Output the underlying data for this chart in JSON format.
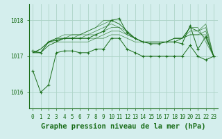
{
  "title": "Graphe pression niveau de la mer (hPa)",
  "bg_color": "#d4eeed",
  "grid_color": "#aed4c8",
  "line_color": "#1a6e1a",
  "ylim": [
    1015.55,
    1018.45
  ],
  "yticks": [
    1016,
    1017,
    1018
  ],
  "xlim": [
    -0.5,
    23.5
  ],
  "xticks": [
    0,
    1,
    2,
    3,
    4,
    5,
    6,
    7,
    8,
    9,
    10,
    11,
    12,
    13,
    14,
    15,
    16,
    17,
    18,
    19,
    20,
    21,
    22,
    23
  ],
  "series": [
    [
      1017.1,
      1017.1,
      1017.3,
      1017.4,
      1017.4,
      1017.4,
      1017.4,
      1017.4,
      1017.5,
      1017.5,
      1017.6,
      1017.6,
      1017.5,
      1017.4,
      1017.4,
      1017.4,
      1017.4,
      1017.4,
      1017.4,
      1017.5,
      1017.6,
      1017.6,
      1017.6,
      1017.0
    ],
    [
      1017.1,
      1017.1,
      1017.3,
      1017.4,
      1017.5,
      1017.5,
      1017.5,
      1017.5,
      1017.5,
      1017.6,
      1017.7,
      1017.7,
      1017.6,
      1017.5,
      1017.4,
      1017.4,
      1017.4,
      1017.4,
      1017.4,
      1017.5,
      1017.6,
      1017.6,
      1017.7,
      1017.0
    ],
    [
      1017.1,
      1017.1,
      1017.4,
      1017.4,
      1017.5,
      1017.5,
      1017.5,
      1017.6,
      1017.6,
      1017.7,
      1017.8,
      1017.8,
      1017.6,
      1017.5,
      1017.4,
      1017.4,
      1017.4,
      1017.4,
      1017.5,
      1017.5,
      1017.7,
      1017.7,
      1017.8,
      1017.0
    ],
    [
      1017.1,
      1017.2,
      1017.4,
      1017.5,
      1017.5,
      1017.5,
      1017.6,
      1017.6,
      1017.7,
      1017.8,
      1017.9,
      1017.8,
      1017.7,
      1017.5,
      1017.4,
      1017.4,
      1017.4,
      1017.4,
      1017.5,
      1017.5,
      1017.8,
      1017.7,
      1017.9,
      1017.0
    ],
    [
      1017.1,
      1017.2,
      1017.4,
      1017.5,
      1017.6,
      1017.6,
      1017.6,
      1017.7,
      1017.8,
      1017.9,
      1018.0,
      1017.9,
      1017.7,
      1017.5,
      1017.4,
      1017.4,
      1017.4,
      1017.4,
      1017.5,
      1017.5,
      1017.8,
      1017.7,
      1017.5,
      1017.0
    ],
    [
      1017.1,
      1017.2,
      1017.4,
      1017.5,
      1017.5,
      1017.6,
      1017.6,
      1017.7,
      1017.8,
      1018.0,
      1018.0,
      1017.9,
      1017.7,
      1017.5,
      1017.4,
      1017.4,
      1017.4,
      1017.4,
      1017.5,
      1017.5,
      1017.8,
      1017.8,
      1017.4,
      1017.0
    ]
  ],
  "main_series_with_markers": [
    [
      0,
      1017.15
    ],
    [
      1,
      1017.1
    ],
    [
      2,
      1017.4
    ],
    [
      3,
      1017.45
    ],
    [
      4,
      1017.5
    ],
    [
      5,
      1017.5
    ],
    [
      6,
      1017.5
    ],
    [
      7,
      1017.5
    ],
    [
      8,
      1017.6
    ],
    [
      9,
      1017.7
    ],
    [
      10,
      1018.0
    ],
    [
      11,
      1018.05
    ],
    [
      12,
      1017.65
    ],
    [
      13,
      1017.5
    ],
    [
      14,
      1017.4
    ],
    [
      15,
      1017.35
    ],
    [
      16,
      1017.35
    ],
    [
      17,
      1017.4
    ],
    [
      18,
      1017.4
    ],
    [
      19,
      1017.35
    ],
    [
      20,
      1017.85
    ],
    [
      21,
      1017.2
    ],
    [
      22,
      1017.55
    ],
    [
      23,
      1017.0
    ]
  ],
  "spike_series": [
    [
      0,
      1016.6
    ],
    [
      1,
      1016.0
    ],
    [
      2,
      1016.2
    ],
    [
      3,
      1017.1
    ],
    [
      4,
      1017.15
    ],
    [
      5,
      1017.15
    ],
    [
      6,
      1017.1
    ],
    [
      7,
      1017.1
    ],
    [
      8,
      1017.2
    ],
    [
      9,
      1017.2
    ],
    [
      10,
      1017.5
    ],
    [
      11,
      1017.5
    ],
    [
      12,
      1017.2
    ],
    [
      13,
      1017.1
    ],
    [
      14,
      1017.0
    ],
    [
      15,
      1017.0
    ],
    [
      16,
      1017.0
    ],
    [
      17,
      1017.0
    ],
    [
      18,
      1017.0
    ],
    [
      19,
      1017.0
    ],
    [
      20,
      1017.3
    ],
    [
      21,
      1017.0
    ],
    [
      22,
      1016.9
    ],
    [
      23,
      1017.0
    ]
  ],
  "tick_fontsize": 5.5,
  "title_fontsize": 7.5
}
